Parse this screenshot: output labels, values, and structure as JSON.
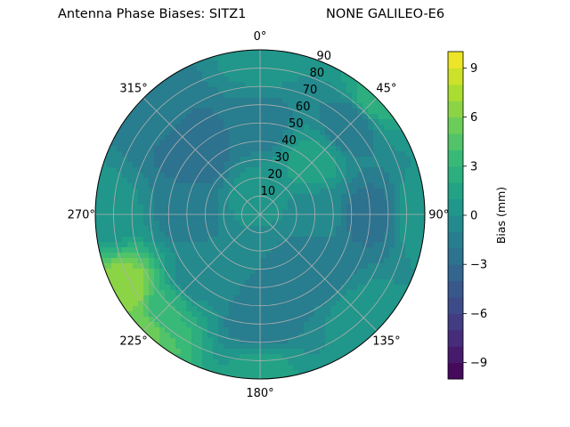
{
  "title_left": "Antenna Phase Biases: SITZ1",
  "title_right": "NONE GALILEO-E6",
  "chart_data": {
    "type": "heatmap",
    "projection": "polar",
    "theta_zero": "N",
    "theta_direction": "clockwise",
    "theta_ticks": [
      "0°",
      "45°",
      "90°",
      "135°",
      "180°",
      "225°",
      "270°",
      "315°"
    ],
    "r_ticks": [
      "10",
      "20",
      "30",
      "40",
      "50",
      "60",
      "70",
      "80",
      "90"
    ],
    "rlim": [
      0,
      90
    ],
    "grid": true,
    "colormap": "viridis",
    "colorbar": {
      "label": "Bias (mm)",
      "range": [
        -10,
        10
      ],
      "levels": 20,
      "ticks": [
        "−9",
        "−6",
        "−3",
        "0",
        "3",
        "6",
        "9"
      ],
      "tick_values": [
        -9,
        -6,
        -3,
        0,
        3,
        6,
        9
      ]
    },
    "bias_field_samples_mm": [
      {
        "theta": 0,
        "r": 10,
        "bias": 0.5
      },
      {
        "theta": 0,
        "r": 50,
        "bias": -1.5
      },
      {
        "theta": 0,
        "r": 85,
        "bias": 0.5
      },
      {
        "theta": 45,
        "r": 40,
        "bias": 1.5
      },
      {
        "theta": 45,
        "r": 70,
        "bias": -2.0
      },
      {
        "theta": 45,
        "r": 88,
        "bias": 2.5
      },
      {
        "theta": 90,
        "r": 30,
        "bias": -0.5
      },
      {
        "theta": 90,
        "r": 60,
        "bias": -2.5
      },
      {
        "theta": 90,
        "r": 88,
        "bias": 1.0
      },
      {
        "theta": 135,
        "r": 40,
        "bias": -2.0
      },
      {
        "theta": 135,
        "r": 80,
        "bias": 0.5
      },
      {
        "theta": 180,
        "r": 30,
        "bias": -1.0
      },
      {
        "theta": 180,
        "r": 60,
        "bias": -2.0
      },
      {
        "theta": 180,
        "r": 85,
        "bias": 1.5
      },
      {
        "theta": 225,
        "r": 50,
        "bias": -0.5
      },
      {
        "theta": 225,
        "r": 75,
        "bias": 3.0
      },
      {
        "theta": 225,
        "r": 88,
        "bias": 5.5
      },
      {
        "theta": 240,
        "r": 85,
        "bias": 7.0
      },
      {
        "theta": 270,
        "r": 40,
        "bias": -1.5
      },
      {
        "theta": 270,
        "r": 85,
        "bias": 0.5
      },
      {
        "theta": 315,
        "r": 50,
        "bias": -3.0
      },
      {
        "theta": 315,
        "r": 80,
        "bias": -1.5
      }
    ]
  },
  "colors": {
    "grid": "#b0b0b0",
    "frame": "#000000"
  }
}
